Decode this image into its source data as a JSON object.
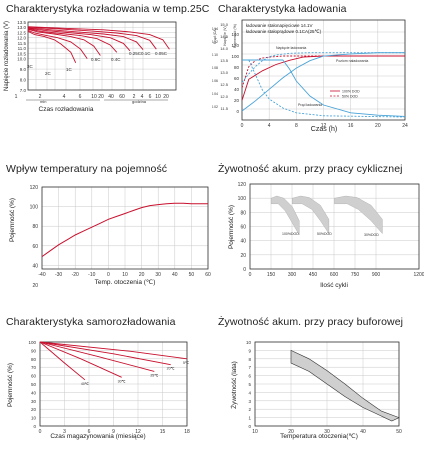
{
  "chart_data": [
    {
      "type": "line",
      "title": "Charakterystyka rozładowania w temp.25C",
      "xlabel": "Czas rozładowania",
      "ylabel": "Napięcie rozładowania (V)",
      "unit_min": "min",
      "unit_h": "h",
      "unit_godzina": "godzina",
      "x_ticks": [
        "1",
        "2",
        "4",
        "6",
        "10",
        "20",
        "40",
        "60",
        "2",
        "4",
        "6",
        "10",
        "20"
      ],
      "y_ticks": [
        "7.0",
        "8.0",
        "9.0",
        "10.0",
        "10.5",
        "11.0",
        "11.5",
        "12.0",
        "12.5",
        "13.0",
        "13.5"
      ],
      "ylim": [
        7.0,
        13.5
      ],
      "series": [
        {
          "name": "3C",
          "x": [
            1,
            3,
            6,
            9,
            11,
            14,
            15.5
          ],
          "y": [
            12.6,
            12.3,
            12.1,
            11.8,
            11.4,
            10.6,
            9.6
          ]
        },
        {
          "name": "2C",
          "x": [
            1,
            3,
            6,
            10,
            14,
            17,
            19
          ],
          "y": [
            12.7,
            12.45,
            12.25,
            12.0,
            11.6,
            10.9,
            10.0
          ]
        },
        {
          "name": "1C",
          "x": [
            1,
            4,
            9,
            14,
            18,
            21,
            23
          ],
          "y": [
            12.8,
            12.55,
            12.35,
            12.1,
            11.8,
            11.2,
            10.3
          ]
        },
        {
          "name": "0.6C",
          "x": [
            1,
            5,
            11,
            17,
            22,
            26,
            28
          ],
          "y": [
            12.85,
            12.6,
            12.4,
            12.2,
            11.9,
            11.3,
            10.6
          ]
        },
        {
          "name": "0.4C",
          "x": [
            1,
            6,
            13,
            20,
            26,
            30,
            32
          ],
          "y": [
            12.9,
            12.7,
            12.5,
            12.3,
            12.0,
            11.45,
            10.75
          ]
        },
        {
          "name": "0.25C",
          "x": [
            1,
            8,
            16,
            24,
            30,
            34,
            36
          ],
          "y": [
            12.95,
            12.75,
            12.55,
            12.35,
            12.1,
            11.6,
            10.85
          ]
        },
        {
          "name": "0.1C",
          "x": [
            1,
            10,
            20,
            28,
            34,
            38,
            40
          ],
          "y": [
            13.0,
            12.85,
            12.65,
            12.45,
            12.2,
            11.75,
            10.9
          ]
        },
        {
          "name": "0.05C",
          "x": [
            1,
            12,
            24,
            32,
            38,
            42,
            44
          ],
          "y": [
            13.05,
            12.9,
            12.75,
            12.55,
            12.3,
            11.8,
            10.9
          ]
        }
      ]
    },
    {
      "type": "line",
      "title": "Charakterystyka ładowania",
      "xlabel": "Czas (h)",
      "x_ticks": [
        "0",
        "4",
        "8",
        "12",
        "16",
        "20",
        "24"
      ],
      "xlim": [
        0,
        24
      ],
      "annot_line1": "ładowanie stałonapięciowe 14.1V",
      "annot_line2": "ładowanie stałoprądowe 0.1CA(25℃)",
      "label_voltage": "Napięcie ładowania",
      "label_capacity": "Poziom naładowania",
      "label_current": "Prąd ładowania",
      "axis_cap": "Pojemność (%)",
      "axis_volt": "Napięcie (V)",
      "axis_curr": "Prąd (CA)",
      "left_ticks_cap": [
        "0",
        "20",
        "40",
        "60",
        "80",
        "100",
        "120",
        "140"
      ],
      "left_ticks_volt": [
        "11.5",
        "12.0",
        "12.5",
        "13.0",
        "13.5",
        "14.0",
        "14.5",
        "15.0"
      ],
      "left_ticks_curr": [
        "0.02",
        "0.04",
        "0.06",
        "0.08",
        "0.10",
        "0.12",
        "0.14"
      ],
      "legend": [
        "100% DOD",
        "50% DOD"
      ],
      "series": [
        {
          "name": "100% DOD",
          "kind": "voltage",
          "x": [
            0,
            1,
            3,
            5,
            7,
            9,
            12,
            16,
            20,
            24
          ],
          "y": [
            12.0,
            13.0,
            13.4,
            13.7,
            13.9,
            14.05,
            14.1,
            14.1,
            14.1,
            14.1
          ]
        },
        {
          "name": "50% DOD",
          "kind": "voltage",
          "x": [
            0,
            1,
            2,
            3,
            4,
            6,
            9,
            12,
            24
          ],
          "y": [
            12.6,
            13.6,
            13.9,
            14.0,
            14.05,
            14.1,
            14.1,
            14.1,
            14.1
          ]
        },
        {
          "name": "100% DOD",
          "kind": "capacity",
          "x": [
            0,
            2,
            4,
            6,
            8,
            10,
            12,
            16,
            20,
            24
          ],
          "y": [
            0,
            18,
            38,
            58,
            75,
            88,
            96,
            100,
            102,
            102
          ]
        },
        {
          "name": "50% DOD",
          "kind": "capacity",
          "x": [
            0,
            1,
            2,
            3,
            4,
            5,
            7,
            10,
            24
          ],
          "y": [
            50,
            65,
            78,
            88,
            95,
            98,
            101,
            102,
            102
          ]
        },
        {
          "name": "100% DOD",
          "kind": "current",
          "x": [
            0,
            6,
            7,
            8,
            10,
            12,
            16,
            20,
            24
          ],
          "y": [
            0.1,
            0.1,
            0.085,
            0.065,
            0.04,
            0.025,
            0.012,
            0.008,
            0.006
          ]
        },
        {
          "name": "50% DOD",
          "kind": "current",
          "x": [
            0,
            1,
            2,
            3,
            4,
            6,
            8,
            12,
            24
          ],
          "y": [
            0.1,
            0.1,
            0.075,
            0.05,
            0.035,
            0.02,
            0.012,
            0.007,
            0.005
          ]
        }
      ]
    },
    {
      "type": "line",
      "title": "Wpływ temperatury na pojemność",
      "xlabel": "Temp. otoczenia (℃)",
      "ylabel": "Pojemność (%)",
      "x_ticks": [
        "-40",
        "-30",
        "-20",
        "-10",
        "0",
        "10",
        "20",
        "30",
        "40",
        "50",
        "60"
      ],
      "y_ticks": [
        "20",
        "40",
        "60",
        "80",
        "100",
        "120"
      ],
      "xlim": [
        -40,
        60
      ],
      "ylim": [
        20,
        120
      ],
      "series": [
        {
          "name": "Pojemność",
          "x": [
            -40,
            -35,
            -30,
            -25,
            -20,
            -15,
            -10,
            -5,
            0,
            5,
            10,
            15,
            20,
            25,
            30,
            35,
            40,
            45,
            50,
            55,
            60
          ],
          "y": [
            49,
            55,
            61,
            66,
            71,
            75,
            79,
            83,
            87,
            90,
            93,
            96,
            99,
            101,
            102,
            103,
            103.5,
            103.5,
            103,
            103,
            103
          ]
        }
      ]
    },
    {
      "type": "area",
      "title": "Żywotność akum. przy pracy cyklicznej",
      "xlabel": "Ilość cykli",
      "ylabel": "Pojemność (%)",
      "x_ticks": [
        "0",
        "150",
        "300",
        "450",
        "600",
        "750",
        "900",
        "1200"
      ],
      "y_ticks": [
        "0",
        "20",
        "40",
        "60",
        "80",
        "100",
        "120"
      ],
      "xlim": [
        0,
        1200
      ],
      "ylim": [
        0,
        120
      ],
      "series": [
        {
          "name": "100%DOD",
          "upper": [
            [
              150,
              100
            ],
            [
              190,
              103
            ],
            [
              240,
              100
            ],
            [
              300,
              88
            ],
            [
              350,
              68
            ]
          ],
          "lower": [
            [
              150,
              92
            ],
            [
              200,
              92
            ],
            [
              250,
              82
            ],
            [
              300,
              65
            ],
            [
              350,
              48
            ]
          ]
        },
        {
          "name": "50%DOD",
          "upper": [
            [
              300,
              100
            ],
            [
              360,
              103
            ],
            [
              420,
              101
            ],
            [
              500,
              90
            ],
            [
              560,
              70
            ]
          ],
          "lower": [
            [
              300,
              92
            ],
            [
              370,
              92
            ],
            [
              440,
              84
            ],
            [
              500,
              68
            ],
            [
              560,
              50
            ]
          ]
        },
        {
          "name": "30%DOD",
          "upper": [
            [
              600,
              100
            ],
            [
              680,
              103
            ],
            [
              760,
              101
            ],
            [
              860,
              90
            ],
            [
              940,
              70
            ]
          ],
          "lower": [
            [
              600,
              92
            ],
            [
              690,
              92
            ],
            [
              770,
              84
            ],
            [
              860,
              68
            ],
            [
              940,
              50
            ]
          ]
        }
      ]
    },
    {
      "type": "line",
      "title": "Charakterystyka samorozładowania",
      "xlabel": "Czas magazynowania (miesiące)",
      "ylabel": "Pojemność (%)",
      "x_ticks": [
        "0",
        "3",
        "6",
        "9",
        "12",
        "15",
        "18"
      ],
      "y_ticks": [
        "0",
        "10",
        "20",
        "30",
        "40",
        "50",
        "60",
        "70",
        "80",
        "90",
        "100"
      ],
      "xlim": [
        0,
        18
      ],
      "ylim": [
        0,
        100
      ],
      "series": [
        {
          "name": "40℃",
          "x": [
            0,
            3,
            5.5
          ],
          "y": [
            100,
            75,
            55
          ]
        },
        {
          "name": "30℃",
          "x": [
            0,
            5,
            10
          ],
          "y": [
            100,
            80,
            58
          ]
        },
        {
          "name": "25℃",
          "x": [
            0,
            7,
            14
          ],
          "y": [
            100,
            83,
            65
          ]
        },
        {
          "name": "20℃",
          "x": [
            0,
            9,
            16
          ],
          "y": [
            100,
            86,
            73
          ]
        },
        {
          "name": "5℃",
          "x": [
            0,
            11,
            18
          ],
          "y": [
            100,
            89,
            80
          ]
        }
      ]
    },
    {
      "type": "area",
      "title": "Żywotność akum. przy pracy buforowej",
      "xlabel": "Temperatura otoczenia(℃)",
      "ylabel": "Żywotność (lata)",
      "x_ticks": [
        "10",
        "20",
        "30",
        "40",
        "50"
      ],
      "y_ticks": [
        "0",
        "1",
        "2",
        "3",
        "4",
        "5",
        "6",
        "7",
        "8",
        "9",
        "10"
      ],
      "xlim": [
        10,
        50
      ],
      "ylim": [
        0,
        10
      ],
      "band": {
        "upper": [
          [
            20,
            9.0
          ],
          [
            25,
            8.0
          ],
          [
            30,
            6.6
          ],
          [
            35,
            5.0
          ],
          [
            40,
            3.3
          ],
          [
            45,
            1.8
          ],
          [
            50,
            1.0
          ]
        ],
        "lower": [
          [
            20,
            7.5
          ],
          [
            25,
            6.5
          ],
          [
            30,
            5.0
          ],
          [
            35,
            3.5
          ],
          [
            40,
            2.2
          ],
          [
            45,
            1.2
          ],
          [
            48,
            0.6
          ]
        ]
      }
    }
  ]
}
